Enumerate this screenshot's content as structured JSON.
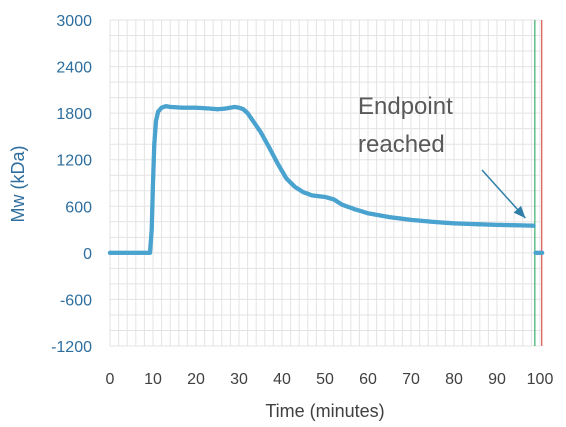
{
  "chart_data": {
    "type": "scatter",
    "xlabel": "Time (minutes)",
    "ylabel": "Mw (kDa)",
    "xlim": [
      0,
      100
    ],
    "ylim": [
      -1200,
      3000
    ],
    "x_ticks": [
      0,
      10,
      20,
      30,
      40,
      50,
      60,
      70,
      80,
      90,
      100
    ],
    "y_ticks": [
      3000,
      2400,
      1800,
      1200,
      600,
      0,
      -600,
      -1200
    ],
    "grid": true,
    "series_color": "#4aa3cf",
    "axis_label_color": "#2e6e9e",
    "series": [
      {
        "points": [
          [
            0,
            0
          ],
          [
            9.3,
            0
          ],
          [
            9.7,
            300
          ],
          [
            10.0,
            900
          ],
          [
            10.3,
            1400
          ],
          [
            10.7,
            1700
          ],
          [
            11.2,
            1820
          ],
          [
            12,
            1870
          ],
          [
            13,
            1890
          ],
          [
            14,
            1880
          ],
          [
            17,
            1870
          ],
          [
            20,
            1870
          ],
          [
            23,
            1860
          ],
          [
            25,
            1850
          ],
          [
            27,
            1860
          ],
          [
            28,
            1870
          ],
          [
            29,
            1880
          ],
          [
            30,
            1870
          ],
          [
            31,
            1850
          ],
          [
            32,
            1800
          ],
          [
            33,
            1720
          ],
          [
            35,
            1560
          ],
          [
            37,
            1360
          ],
          [
            39,
            1150
          ],
          [
            41,
            960
          ],
          [
            43,
            850
          ],
          [
            45,
            780
          ],
          [
            47,
            740
          ],
          [
            50,
            720
          ],
          [
            52,
            690
          ],
          [
            54,
            620
          ],
          [
            57,
            560
          ],
          [
            60,
            510
          ],
          [
            65,
            460
          ],
          [
            70,
            425
          ],
          [
            75,
            400
          ],
          [
            80,
            380
          ],
          [
            85,
            370
          ],
          [
            90,
            360
          ],
          [
            95,
            355
          ],
          [
            98.5,
            350
          ]
        ]
      },
      {
        "points": [
          [
            99.0,
            0
          ],
          [
            100.5,
            0
          ]
        ]
      }
    ],
    "vertical_lines": [
      {
        "x": 98.8,
        "color": "#3cae6a"
      },
      {
        "x": 100.4,
        "color": "#d9534f"
      }
    ],
    "annotations": [
      {
        "text": [
          "Endpoint",
          "reached"
        ],
        "arrow_to": [
          98,
          370
        ]
      }
    ]
  }
}
